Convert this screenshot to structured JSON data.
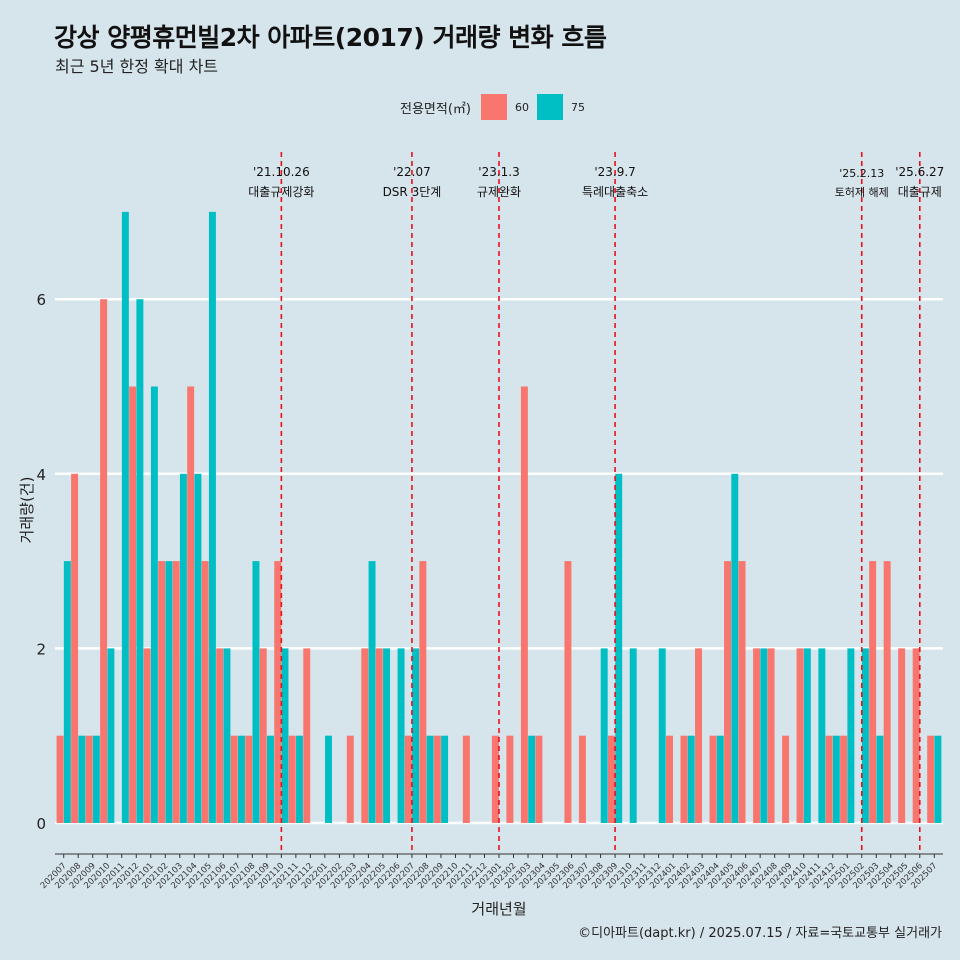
{
  "title": "강상 양평휴먼빌2차 아파트(2017) 거래량 변화 흐름",
  "subtitle": "최근 5년 한정 확대 차트",
  "legend": {
    "title": "전용면적(㎡)",
    "items": [
      {
        "label": "60",
        "color": "#F8766D"
      },
      {
        "label": "75",
        "color": "#00BFC4"
      }
    ]
  },
  "caption": "©디아파트(dapt.kr) / 2025.07.15 / 자료=국토교통부 실거래가",
  "chart_data": {
    "type": "bar",
    "ylabel": "거래량(건)",
    "xlabel": "거래년월",
    "ylim": [
      0,
      7
    ],
    "yticks": [
      0,
      2,
      4,
      6
    ],
    "categories": [
      "202007",
      "202008",
      "202009",
      "202010",
      "202011",
      "202012",
      "202101",
      "202102",
      "202103",
      "202104",
      "202105",
      "202106",
      "202107",
      "202108",
      "202109",
      "202110",
      "202111",
      "202112",
      "202201",
      "202202",
      "202203",
      "202204",
      "202205",
      "202206",
      "202207",
      "202208",
      "202209",
      "202210",
      "202211",
      "202212",
      "202301",
      "202302",
      "202303",
      "202304",
      "202305",
      "202306",
      "202307",
      "202308",
      "202309",
      "202310",
      "202311",
      "202312",
      "202401",
      "202402",
      "202403",
      "202404",
      "202405",
      "202406",
      "202407",
      "202408",
      "202409",
      "202410",
      "202411",
      "202412",
      "202501",
      "202502",
      "202503",
      "202504",
      "202505",
      "202506",
      "202507"
    ],
    "series": [
      {
        "name": "60",
        "color": "#F8766D",
        "values": [
          1,
          4,
          1,
          6,
          0,
          5,
          2,
          3,
          3,
          5,
          3,
          2,
          1,
          1,
          2,
          3,
          1,
          2,
          0,
          0,
          1,
          2,
          2,
          0,
          1,
          3,
          1,
          0,
          1,
          0,
          1,
          1,
          5,
          1,
          0,
          3,
          1,
          0,
          1,
          0,
          0,
          0,
          1,
          1,
          2,
          1,
          3,
          3,
          2,
          2,
          1,
          2,
          0,
          1,
          1,
          0,
          3,
          3,
          2,
          2,
          1
        ]
      },
      {
        "name": "75",
        "color": "#00BFC4",
        "values": [
          3,
          1,
          1,
          2,
          7,
          6,
          5,
          3,
          4,
          4,
          7,
          2,
          1,
          3,
          1,
          2,
          1,
          0,
          1,
          0,
          0,
          3,
          2,
          2,
          2,
          1,
          1,
          0,
          0,
          0,
          0,
          0,
          1,
          0,
          0,
          0,
          0,
          2,
          4,
          2,
          0,
          2,
          0,
          1,
          0,
          1,
          4,
          0,
          2,
          0,
          0,
          2,
          2,
          1,
          2,
          2,
          1,
          0,
          0,
          0,
          1
        ]
      }
    ],
    "events": [
      {
        "date": "'21.10.26",
        "label": "대출규제강화",
        "at": "202110"
      },
      {
        "date": "'22.07",
        "label": "DSR 3단계",
        "at": "202207"
      },
      {
        "date": "'23.1.3",
        "label": "규제완화",
        "at": "202301"
      },
      {
        "date": "'23.9.7",
        "label": "특례대출축소",
        "at": "202309"
      },
      {
        "date": "'25.2.13",
        "label": "토허제 해제",
        "at": "202502"
      },
      {
        "date": "'25.6.27",
        "label": "대출규제",
        "at": "202506"
      }
    ]
  }
}
